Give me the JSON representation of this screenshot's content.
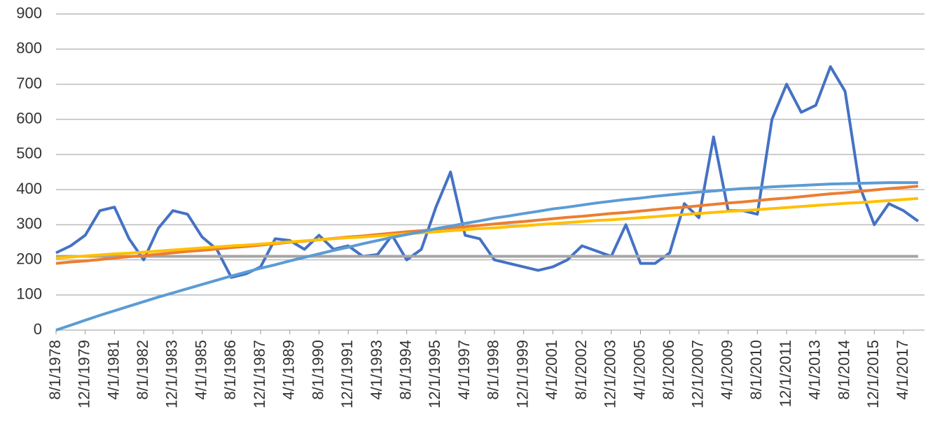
{
  "chart_data": {
    "type": "line",
    "ylim": [
      0,
      900
    ],
    "yticks": [
      0,
      100,
      200,
      300,
      400,
      500,
      600,
      700,
      800,
      900
    ],
    "grid": true,
    "categories": [
      "8/1/1978",
      null,
      "12/1/1979",
      null,
      "4/1/1981",
      null,
      "8/1/1982",
      null,
      "12/1/1983",
      null,
      "4/1/1985",
      null,
      "8/1/1986",
      null,
      "12/1/1987",
      null,
      "4/1/1989",
      null,
      "8/1/1990",
      null,
      "12/1/1991",
      null,
      "4/1/1993",
      null,
      "8/1/1994",
      null,
      "12/1/1995",
      null,
      "4/1/1997",
      null,
      "8/1/1998",
      null,
      "12/1/1999",
      null,
      "4/1/2001",
      null,
      "8/1/2002",
      null,
      "12/1/2003",
      null,
      "4/1/2005",
      null,
      "8/1/2006",
      null,
      "12/1/2007",
      null,
      "4/1/2009",
      null,
      "8/1/2010",
      null,
      "12/1/2011",
      null,
      "4/1/2013",
      null,
      "8/1/2014",
      null,
      "12/1/2015",
      null,
      "4/1/2017",
      null
    ],
    "series": [
      {
        "color": "#4472c4",
        "values": [
          220,
          240,
          270,
          340,
          350,
          260,
          200,
          290,
          340,
          330,
          265,
          230,
          150,
          160,
          180,
          260,
          255,
          230,
          270,
          230,
          240,
          210,
          215,
          270,
          200,
          230,
          350,
          450,
          270,
          260,
          200,
          190,
          180,
          170,
          180,
          200,
          240,
          225,
          210,
          300,
          190,
          190,
          220,
          360,
          320,
          550,
          340,
          340,
          330,
          600,
          700,
          620,
          640,
          750,
          680,
          410,
          300,
          360,
          340,
          310
        ]
      },
      {
        "color": "#a5a5a5",
        "values": [
          210,
          210,
          210,
          210,
          210,
          210,
          210,
          210,
          210,
          210,
          210,
          210,
          210,
          210,
          210,
          210,
          210,
          210,
          210,
          210,
          210,
          210,
          210,
          210,
          210,
          210,
          210,
          210,
          210,
          210,
          210,
          210,
          210,
          210,
          210,
          210,
          210,
          210,
          210,
          210,
          210,
          210,
          210,
          210,
          210,
          210,
          210,
          210,
          210,
          210,
          210,
          210,
          210,
          210,
          210,
          210,
          210,
          210,
          210,
          210
        ]
      },
      {
        "color": "#ed7d31",
        "values": [
          190,
          194,
          197,
          201,
          205,
          209,
          212,
          216,
          220,
          224,
          227,
          231,
          235,
          238,
          242,
          246,
          250,
          253,
          257,
          261,
          265,
          268,
          272,
          276,
          280,
          283,
          287,
          291,
          294,
          298,
          302,
          306,
          309,
          313,
          317,
          321,
          324,
          328,
          332,
          335,
          339,
          343,
          347,
          350,
          354,
          358,
          362,
          365,
          369,
          373,
          376,
          380,
          384,
          388,
          391,
          395,
          399,
          403,
          406,
          410
        ]
      },
      {
        "color": "#ffc000",
        "values": [
          205,
          208,
          211,
          214,
          217,
          219,
          222,
          225,
          228,
          231,
          234,
          237,
          240,
          242,
          245,
          248,
          251,
          254,
          257,
          260,
          263,
          265,
          268,
          271,
          274,
          277,
          280,
          283,
          286,
          289,
          291,
          294,
          297,
          300,
          303,
          306,
          309,
          312,
          314,
          317,
          320,
          323,
          326,
          329,
          332,
          335,
          338,
          340,
          343,
          346,
          349,
          352,
          355,
          358,
          361,
          363,
          366,
          369,
          372,
          375
        ]
      },
      {
        "color": "#5b9bd5",
        "values": [
          0,
          14,
          28,
          42,
          55,
          68,
          81,
          94,
          106,
          118,
          130,
          142,
          154,
          165,
          176,
          186,
          197,
          207,
          217,
          227,
          236,
          246,
          255,
          264,
          272,
          280,
          289,
          296,
          304,
          311,
          319,
          325,
          332,
          338,
          345,
          350,
          356,
          362,
          367,
          372,
          376,
          381,
          385,
          389,
          393,
          396,
          400,
          403,
          405,
          408,
          410,
          412,
          414,
          416,
          417,
          418,
          419,
          420,
          420,
          420
        ]
      }
    ]
  }
}
